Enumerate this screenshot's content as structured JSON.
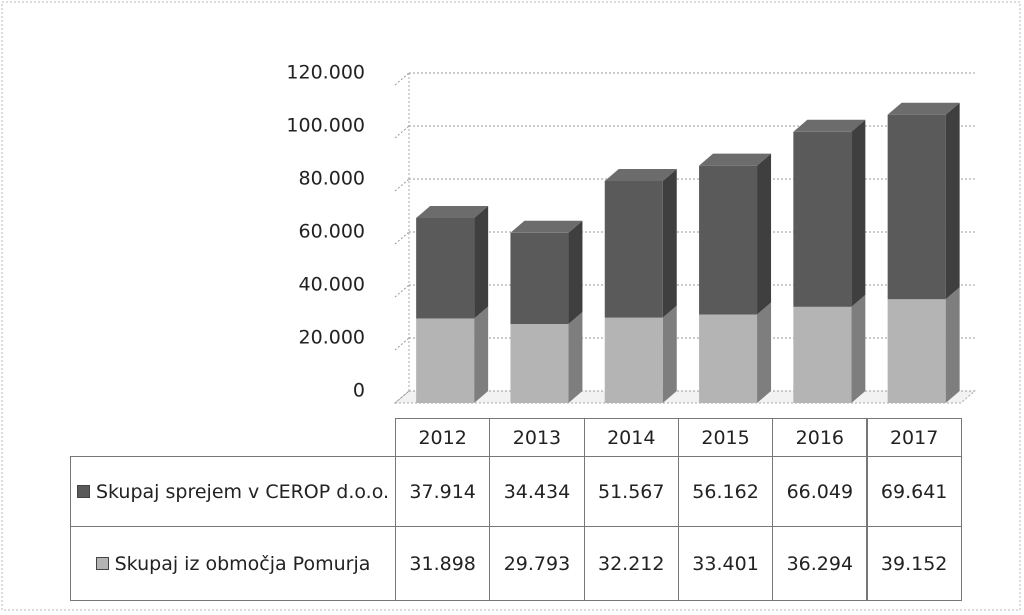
{
  "chart_data": {
    "type": "bar3d_stacked",
    "categories": [
      "2012",
      "2013",
      "2014",
      "2015",
      "2016",
      "2017"
    ],
    "series": [
      {
        "name": "Skupaj sprejem v CEROP d.o.o.",
        "color": "#5a5a5a",
        "values": [
          37914,
          34434,
          51567,
          56162,
          66049,
          69641
        ],
        "value_labels": [
          "37.914",
          "34.434",
          "51.567",
          "56.162",
          "66.049",
          "69.641"
        ]
      },
      {
        "name": "Skupaj iz območja Pomurja",
        "color": "#b4b4b4",
        "values": [
          31898,
          29793,
          32212,
          33401,
          36294,
          39152
        ],
        "value_labels": [
          "31.898",
          "29.793",
          "32.212",
          "33.401",
          "36.294",
          "39.152"
        ]
      }
    ],
    "ylim": [
      0,
      120000
    ],
    "yticks": [
      0,
      {
        "value": 20000,
        "label": "20.000"
      },
      {
        "value": 40000,
        "label": "40.000"
      },
      {
        "value": 60000,
        "label": "60.000"
      },
      {
        "value": 80000,
        "label": "80.000"
      },
      {
        "value": 100000,
        "label": "100.000"
      },
      {
        "value": 120000,
        "label": "120.000"
      }
    ],
    "grid": true
  }
}
